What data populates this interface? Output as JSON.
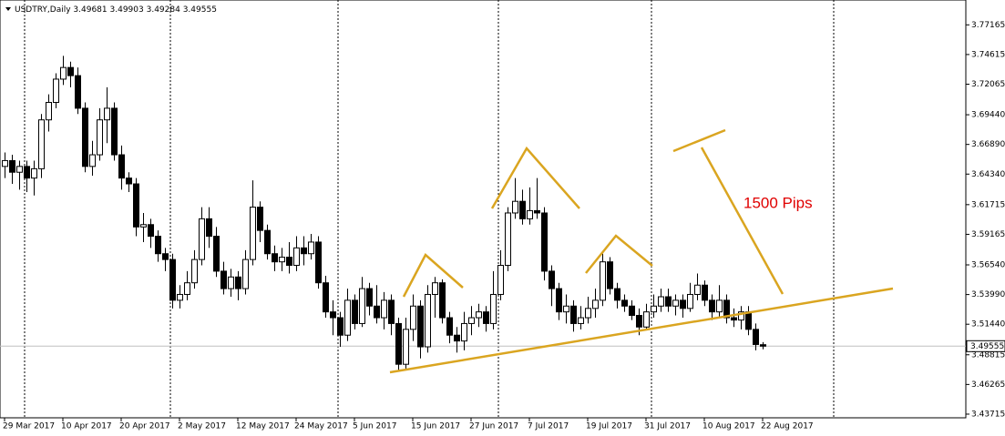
{
  "chart_data": {
    "type": "candlestick",
    "symbol": "USDTRY,Daily",
    "annotation": "1500 Pips",
    "categories": [
      "29 Mar 2017",
      null,
      null,
      null,
      null,
      null,
      null,
      null,
      "10 Apr 2017",
      null,
      null,
      null,
      null,
      null,
      null,
      null,
      "20 Apr 2017",
      null,
      null,
      null,
      null,
      null,
      null,
      null,
      "2 May 2017",
      null,
      null,
      null,
      null,
      null,
      null,
      null,
      "12 May 2017",
      null,
      null,
      null,
      null,
      null,
      null,
      null,
      "24 May 2017",
      null,
      null,
      null,
      null,
      null,
      null,
      null,
      "5 Jun 2017",
      null,
      null,
      null,
      null,
      null,
      null,
      null,
      "15 Jun 2017",
      null,
      null,
      null,
      null,
      null,
      null,
      null,
      "27 Jun 2017",
      null,
      null,
      null,
      null,
      null,
      null,
      null,
      "7 Jul 2017",
      null,
      null,
      null,
      null,
      null,
      null,
      null,
      "19 Jul 2017",
      null,
      null,
      null,
      null,
      null,
      null,
      null,
      "31 Jul 2017",
      null,
      null,
      null,
      null,
      null,
      null,
      null,
      "10 Aug 2017",
      null,
      null,
      null,
      null,
      null,
      null,
      null,
      "22 Aug 2017"
    ],
    "open": [
      3.65,
      3.655,
      3.645,
      3.65,
      3.64,
      3.648,
      3.69,
      3.705,
      3.725,
      3.735,
      3.728,
      3.7,
      3.65,
      3.66,
      3.69,
      3.7,
      3.66,
      3.64,
      3.635,
      3.598,
      3.6,
      3.59,
      3.575,
      3.57,
      3.535,
      3.54,
      3.55,
      3.57,
      3.605,
      3.59,
      3.56,
      3.545,
      3.555,
      3.545,
      3.57,
      3.615,
      3.595,
      3.575,
      3.568,
      3.572,
      3.565,
      3.58,
      3.575,
      3.585,
      3.55,
      3.525,
      3.52,
      3.505,
      3.535,
      3.515,
      3.545,
      3.53,
      3.52,
      3.535,
      3.515,
      3.48,
      3.51,
      3.53,
      3.495,
      3.54,
      3.55,
      3.52,
      3.505,
      3.5,
      3.515,
      3.52,
      3.525,
      3.515,
      3.54,
      3.565,
      3.61,
      3.62,
      3.605,
      3.612,
      3.61,
      3.56,
      3.545,
      3.525,
      3.53,
      3.515,
      3.52,
      3.528,
      3.535,
      3.568,
      3.545,
      3.535,
      3.53,
      3.522,
      3.512,
      3.525,
      3.53,
      3.538,
      3.53,
      3.535,
      3.528,
      3.54,
      3.548,
      3.535,
      3.525,
      3.535,
      3.52,
      3.518,
      3.525,
      3.51,
      3.49681
    ],
    "high": [
      3.662,
      3.66,
      3.655,
      3.655,
      3.655,
      3.695,
      3.712,
      3.73,
      3.745,
      3.74,
      3.735,
      3.705,
      3.672,
      3.7,
      3.718,
      3.705,
      3.668,
      3.645,
      3.64,
      3.61,
      3.605,
      3.595,
      3.58,
      3.575,
      3.548,
      3.56,
      3.578,
      3.615,
      3.615,
      3.598,
      3.568,
      3.562,
      3.56,
      3.578,
      3.638,
      3.62,
      3.6,
      3.582,
      3.58,
      3.585,
      3.59,
      3.59,
      3.592,
      3.59,
      3.556,
      3.535,
      3.525,
      3.545,
      3.54,
      3.555,
      3.55,
      3.548,
      3.542,
      3.54,
      3.52,
      3.52,
      3.54,
      3.535,
      3.548,
      3.555,
      3.553,
      3.525,
      3.512,
      3.525,
      3.53,
      3.532,
      3.53,
      3.56,
      3.578,
      3.615,
      3.64,
      3.63,
      3.632,
      3.64,
      3.615,
      3.565,
      3.55,
      3.54,
      3.535,
      3.53,
      3.538,
      3.545,
      3.575,
      3.572,
      3.55,
      3.54,
      3.535,
      3.528,
      3.532,
      3.54,
      3.545,
      3.545,
      3.54,
      3.54,
      3.55,
      3.558,
      3.552,
      3.54,
      3.548,
      3.54,
      3.528,
      3.53,
      3.53,
      3.515,
      3.49903
    ],
    "low": [
      3.64,
      3.635,
      3.63,
      3.628,
      3.625,
      3.64,
      3.68,
      3.7,
      3.72,
      3.718,
      3.695,
      3.645,
      3.642,
      3.655,
      3.67,
      3.655,
      3.63,
      3.628,
      3.59,
      3.585,
      3.58,
      3.568,
      3.56,
      3.528,
      3.528,
      3.535,
      3.545,
      3.565,
      3.58,
      3.555,
      3.54,
      3.538,
      3.535,
      3.54,
      3.565,
      3.585,
      3.57,
      3.56,
      3.56,
      3.558,
      3.56,
      3.565,
      3.57,
      3.545,
      3.52,
      3.505,
      3.495,
      3.5,
      3.51,
      3.512,
      3.522,
      3.515,
      3.51,
      3.505,
      3.475,
      3.476,
      3.5,
      3.485,
      3.49,
      3.52,
      3.515,
      3.498,
      3.49,
      3.492,
      3.505,
      3.512,
      3.508,
      3.51,
      3.535,
      3.56,
      3.605,
      3.6,
      3.6,
      3.605,
      3.552,
      3.53,
      3.518,
      3.515,
      3.508,
      3.51,
      3.515,
      3.52,
      3.53,
      3.54,
      3.528,
      3.525,
      3.518,
      3.505,
      3.51,
      3.52,
      3.525,
      3.525,
      3.522,
      3.52,
      3.525,
      3.535,
      3.53,
      3.518,
      3.52,
      3.515,
      3.512,
      3.51,
      3.505,
      3.492,
      3.49284
    ],
    "close": [
      3.655,
      3.645,
      3.65,
      3.64,
      3.648,
      3.69,
      3.705,
      3.725,
      3.735,
      3.728,
      3.7,
      3.65,
      3.66,
      3.69,
      3.7,
      3.66,
      3.64,
      3.635,
      3.598,
      3.6,
      3.59,
      3.575,
      3.57,
      3.535,
      3.54,
      3.55,
      3.57,
      3.605,
      3.59,
      3.56,
      3.545,
      3.555,
      3.545,
      3.57,
      3.615,
      3.595,
      3.575,
      3.568,
      3.572,
      3.565,
      3.58,
      3.575,
      3.585,
      3.55,
      3.525,
      3.52,
      3.505,
      3.535,
      3.515,
      3.545,
      3.53,
      3.52,
      3.535,
      3.515,
      3.48,
      3.51,
      3.53,
      3.495,
      3.54,
      3.55,
      3.52,
      3.505,
      3.5,
      3.515,
      3.52,
      3.525,
      3.515,
      3.54,
      3.565,
      3.61,
      3.62,
      3.605,
      3.612,
      3.61,
      3.56,
      3.545,
      3.525,
      3.53,
      3.515,
      3.52,
      3.528,
      3.535,
      3.568,
      3.545,
      3.535,
      3.53,
      3.522,
      3.512,
      3.525,
      3.53,
      3.538,
      3.53,
      3.535,
      3.528,
      3.54,
      3.548,
      3.535,
      3.525,
      3.535,
      3.52,
      3.518,
      3.525,
      3.51,
      3.497,
      3.49555
    ],
    "ylim": [
      3.434,
      3.793
    ],
    "yticks": [
      3.77165,
      3.74615,
      3.72065,
      {
        "value": 3.6944,
        "label": "3.69440"
      },
      {
        "value": 3.6689,
        "label": "3.66890"
      },
      {
        "value": 3.6434,
        "label": "3.64340"
      },
      3.61715,
      3.59165,
      {
        "value": 3.5654,
        "label": "3.56540"
      },
      {
        "value": 3.5399,
        "label": "3.53990"
      },
      {
        "value": 3.5144,
        "label": "3.51440"
      },
      3.48815,
      3.46265,
      3.43715
    ]
  }
}
